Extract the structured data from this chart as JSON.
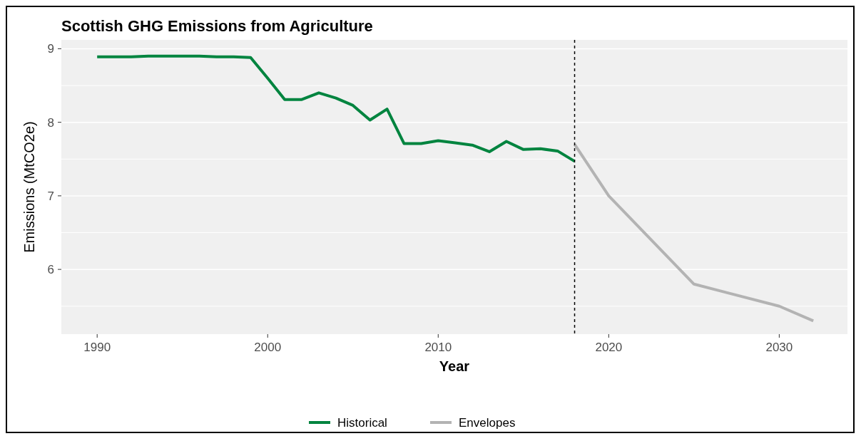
{
  "chart_data": {
    "type": "line",
    "title": "Scottish GHG Emissions from Agriculture",
    "xlabel": "Year",
    "ylabel": "Emissions (MtCO2e)",
    "xlim": [
      1987.9,
      2034
    ],
    "xticks": [
      1990,
      2000,
      2010,
      2020,
      2030
    ],
    "ylim": [
      5.12,
      9.12
    ],
    "yticks": [
      6,
      7,
      8,
      9
    ],
    "grid": "y",
    "legend": "bottom",
    "ref_lines": [
      {
        "axis": "x",
        "value": 2018,
        "color": "#000000",
        "line_style": "dashed"
      }
    ],
    "series": [
      {
        "name": "Historical",
        "color": "#00843f",
        "x": [
          1990,
          1991,
          1992,
          1993,
          1994,
          1995,
          1996,
          1997,
          1998,
          1999,
          2000,
          2001,
          2002,
          2003,
          2004,
          2005,
          2006,
          2007,
          2008,
          2009,
          2010,
          2011,
          2012,
          2013,
          2014,
          2015,
          2016,
          2017,
          2018
        ],
        "values": [
          8.89,
          8.89,
          8.89,
          8.9,
          8.9,
          8.9,
          8.9,
          8.89,
          8.89,
          8.88,
          8.6,
          8.31,
          8.31,
          8.4,
          8.33,
          8.23,
          8.03,
          8.18,
          7.71,
          7.71,
          7.75,
          7.72,
          7.69,
          7.6,
          7.74,
          7.63,
          7.64,
          7.61,
          7.47
        ]
      },
      {
        "name": "Envelopes",
        "color": "#b3b3b3",
        "x": [
          2018,
          2020,
          2025,
          2030,
          2032
        ],
        "values": [
          7.7,
          7.0,
          5.8,
          5.5,
          5.3
        ]
      }
    ]
  }
}
